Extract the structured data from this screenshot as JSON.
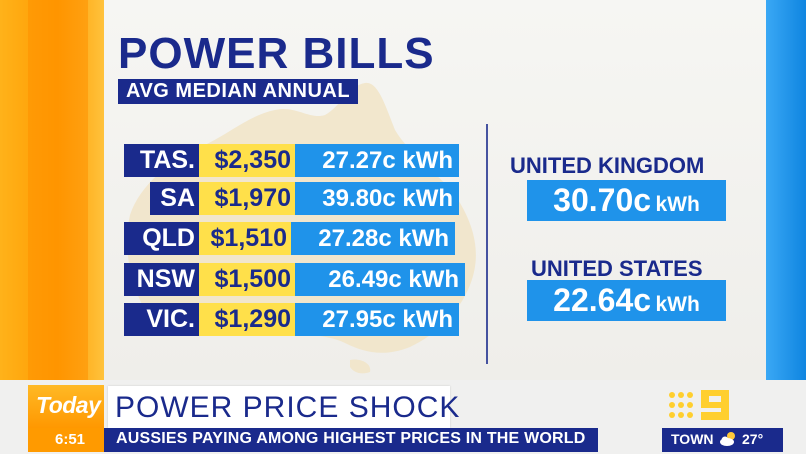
{
  "graphic": {
    "title": "POWER BILLS",
    "subtitle": "AVG MEDIAN ANNUAL",
    "rows": [
      {
        "state": "TAS.",
        "price": "$2,350",
        "rate": "27.27c kWh"
      },
      {
        "state": "SA",
        "price": "$1,970",
        "rate": "39.80c kWh"
      },
      {
        "state": "QLD",
        "price": "$1,510",
        "rate": "27.28c kWh"
      },
      {
        "state": "NSW",
        "price": "$1,500",
        "rate": "26.49c kWh"
      },
      {
        "state": "VIC.",
        "price": "$1,290",
        "rate": "27.95c kWh"
      }
    ],
    "comparisons": [
      {
        "country": "UNITED KINGDOM",
        "value": "30.70c",
        "unit": "kWh"
      },
      {
        "country": "UNITED STATES",
        "value": "22.64c",
        "unit": "kWh"
      }
    ]
  },
  "lower_third": {
    "show_name": "Today",
    "headline": "POWER PRICE SHOCK",
    "ticker": "AUSSIES PAYING AMONG HIGHEST PRICES IN THE WORLD",
    "time": "6:51"
  },
  "network": {
    "logo_icon": "channel-nine-logo"
  },
  "weather": {
    "location": "TOWN",
    "icon": "partly-cloudy-icon",
    "temperature": "27°"
  },
  "colors": {
    "navy": "#1a2a8c",
    "blue": "#1f93ea",
    "yellow": "#ffe04a",
    "orange": "#ff9a00"
  }
}
